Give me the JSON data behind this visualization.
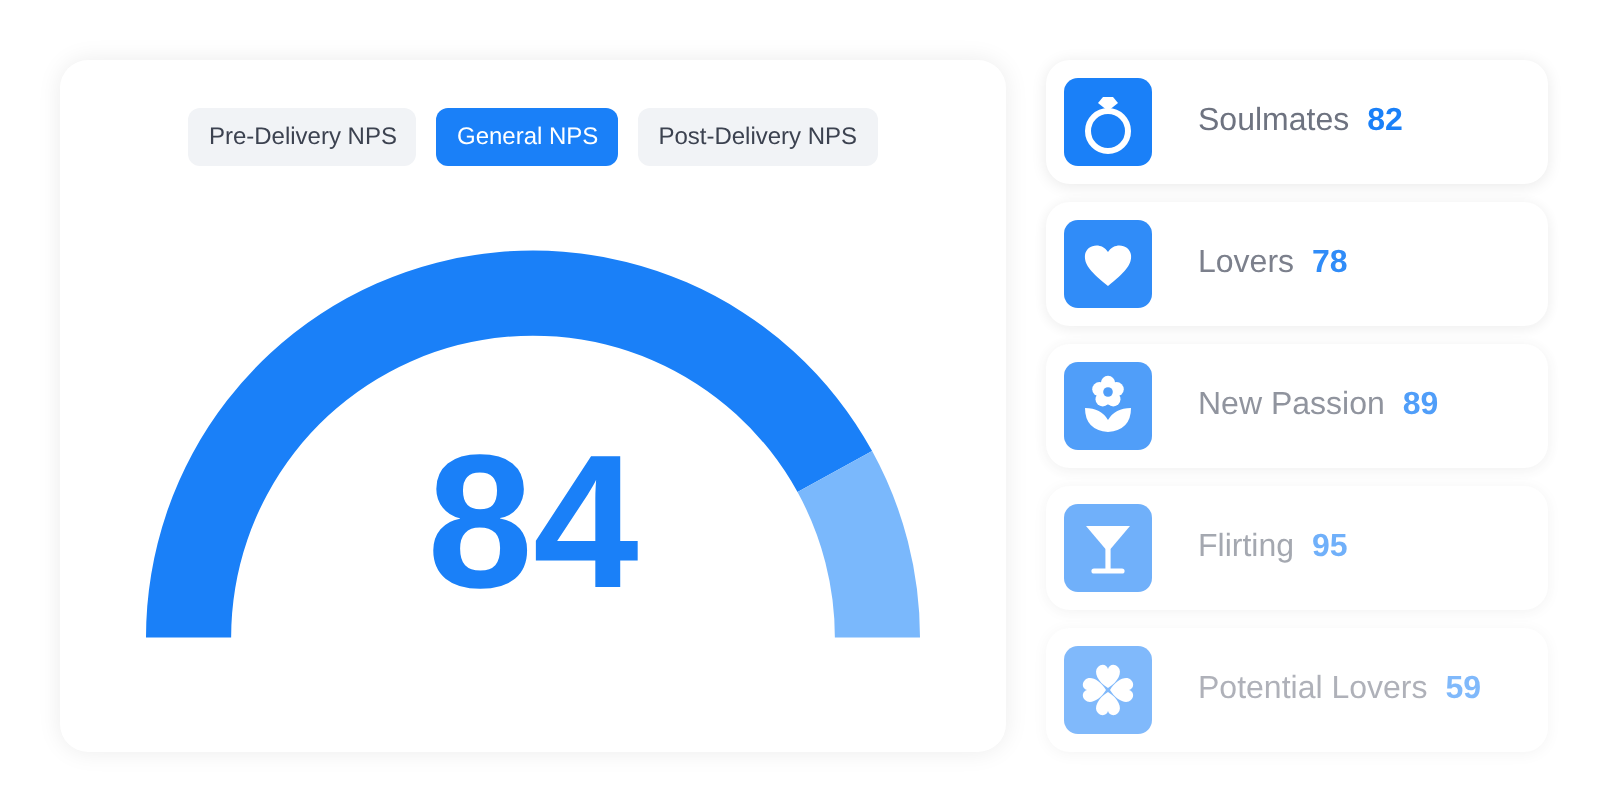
{
  "chart_data": [
    {
      "type": "donut",
      "annotations": [
        "Pre-Delivery NPS",
        "General NPS",
        "Post-Delivery NPS"
      ],
      "categories": [
        null,
        null
      ],
      "values": [
        84,
        16
      ],
      "colors": [
        "#1a80f8",
        "#7ab8fc"
      ],
      "value_labels": [
        "84",
        null
      ]
    },
    {
      "type": "other",
      "categories": [
        "Soulmates",
        "Lovers",
        "New Passion",
        "Flirting",
        "Potential Lovers"
      ],
      "values": [
        82,
        78,
        89,
        95,
        59
      ],
      "data_labels": true
    }
  ]
}
